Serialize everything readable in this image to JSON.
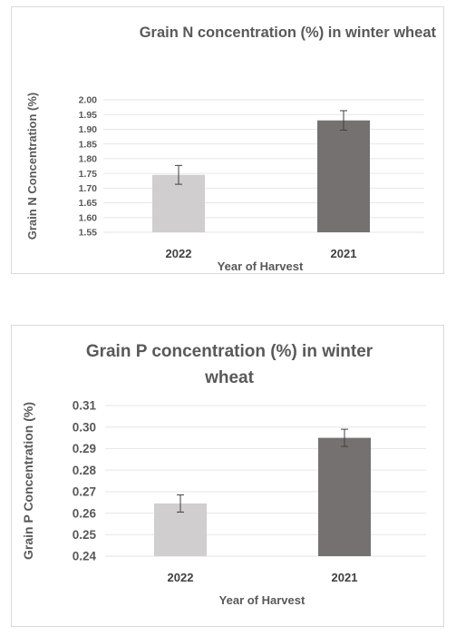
{
  "chart_data": [
    {
      "type": "bar",
      "title": "Grain N concentration (%) in winter wheat",
      "xlabel": "Year of Harvest",
      "ylabel": "Grain N Concentration (%)",
      "categories": [
        "2022",
        "2021"
      ],
      "values": [
        1.745,
        1.93
      ],
      "error": [
        0.032,
        0.033
      ],
      "ylim": [
        1.55,
        2.0
      ],
      "yticks": [
        "1.55",
        "1.60",
        "1.65",
        "1.70",
        "1.75",
        "1.80",
        "1.85",
        "1.90",
        "1.95",
        "2.00"
      ],
      "colors": [
        "#d0cece",
        "#767171"
      ],
      "grid": true
    },
    {
      "type": "bar",
      "title": "Grain P concentration (%) in winter wheat",
      "xlabel": "Year of Harvest",
      "ylabel": "Grain P Concentration (%)",
      "categories": [
        "2022",
        "2021"
      ],
      "values": [
        0.2645,
        0.295
      ],
      "error": [
        0.004,
        0.004
      ],
      "ylim": [
        0.24,
        0.31
      ],
      "yticks": [
        "0.24",
        "0.25",
        "0.26",
        "0.27",
        "0.28",
        "0.29",
        "0.30",
        "0.31"
      ],
      "colors": [
        "#d0cece",
        "#767171"
      ],
      "grid": true
    }
  ]
}
